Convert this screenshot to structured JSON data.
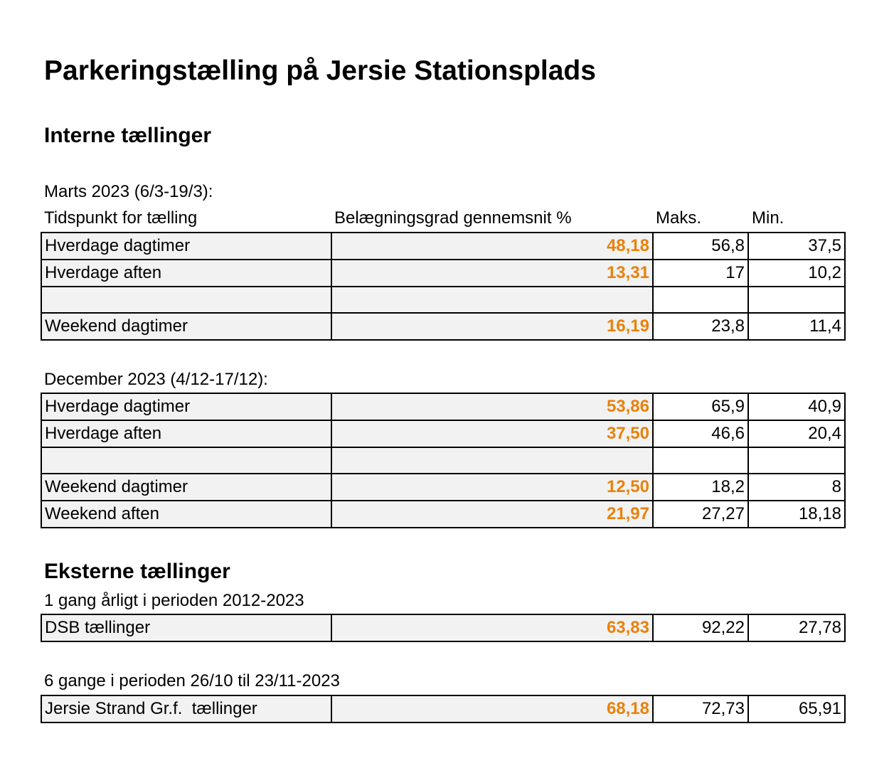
{
  "title": "Parkeringstælling på Jersie Stationsplads",
  "sections": [
    {
      "heading": "Interne tællinger",
      "groups": [
        {
          "caption": "Marts 2023 (6/3-19/3):",
          "columns": [
            "Tidspunkt for tælling",
            "Belægningsgrad gennemsnit %",
            "Maks.",
            "Min."
          ],
          "rows": [
            [
              "Hverdage dagtimer",
              "48,18",
              "56,8",
              "37,5"
            ],
            [
              "Hverdage aften",
              "13,31",
              "17",
              "10,2"
            ],
            null,
            [
              "Weekend dagtimer",
              "16,19",
              "23,8",
              "11,4"
            ]
          ]
        },
        {
          "caption": "December 2023 (4/12-17/12):",
          "rows": [
            [
              "Hverdage dagtimer",
              "53,86",
              "65,9",
              "40,9"
            ],
            [
              "Hverdage aften",
              "37,50",
              "46,6",
              "20,4"
            ],
            null,
            [
              "Weekend dagtimer",
              "12,50",
              "18,2",
              "8"
            ],
            [
              "Weekend aften",
              "21,97",
              "27,27",
              "18,18"
            ]
          ]
        }
      ]
    },
    {
      "heading": "Eksterne tællinger",
      "groups": [
        {
          "caption": "1 gang årligt i perioden 2012-2023",
          "rows": [
            [
              "DSB tællinger",
              "63,83",
              "92,22",
              "27,78"
            ]
          ]
        },
        {
          "caption": "6 gange i perioden 26/10 til 23/11-2023",
          "rows": [
            [
              "Jersie Strand Gr.f.  tællinger",
              "68,18",
              "72,73",
              "65,91"
            ]
          ]
        }
      ]
    }
  ]
}
